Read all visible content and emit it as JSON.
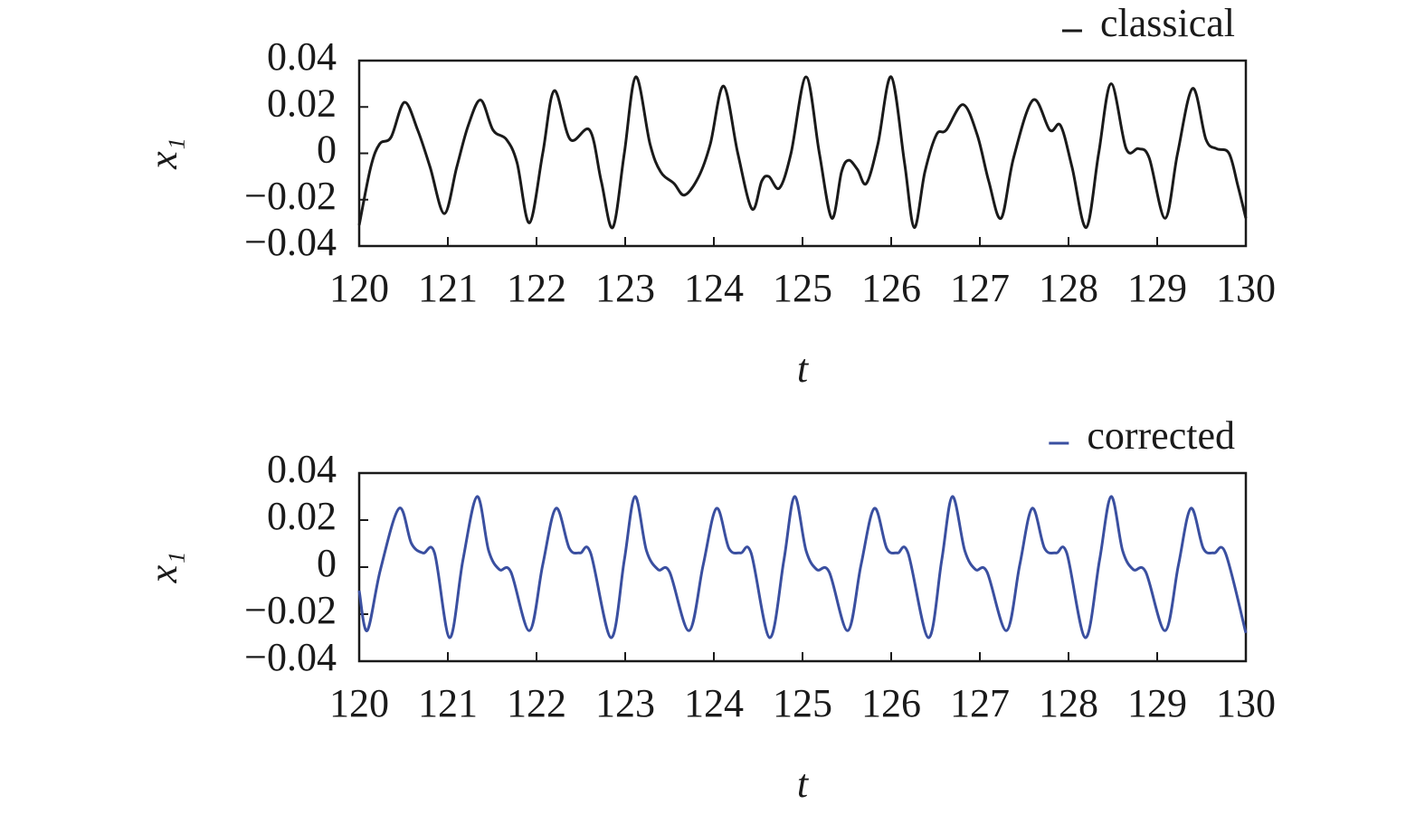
{
  "chart_data": [
    {
      "type": "line",
      "xlabel": "t",
      "ylabel": "x₁",
      "legend": "top right",
      "xlim": [
        120,
        130
      ],
      "ylim": [
        -0.04,
        0.04
      ],
      "xticks": [
        120,
        121,
        122,
        123,
        124,
        125,
        126,
        127,
        128,
        129,
        130
      ],
      "yticks": [
        {
          "value": -0.04,
          "label": "−0.04"
        },
        {
          "value": -0.02,
          "label": "−0.02"
        },
        0,
        0.02,
        0.04
      ],
      "x": [
        120,
        120.13,
        120.23,
        120.36,
        120.51,
        120.66,
        120.8,
        120.96,
        121.1,
        121.23,
        121.37,
        121.51,
        121.66,
        121.78,
        121.92,
        122.07,
        122.2,
        122.38,
        122.6,
        122.73,
        122.86,
        122.99,
        123.12,
        123.28,
        123.4,
        123.55,
        123.67,
        123.83,
        123.96,
        124.11,
        124.27,
        124.43,
        124.54,
        124.62,
        124.74,
        124.87,
        125.04,
        125.19,
        125.33,
        125.44,
        125.52,
        125.62,
        125.72,
        125.85,
        126,
        126.15,
        126.26,
        126.38,
        126.51,
        126.62,
        126.81,
        126.97,
        127.1,
        127.24,
        127.38,
        127.6,
        127.79,
        127.91,
        128.04,
        128.2,
        128.34,
        128.48,
        128.65,
        128.79,
        128.91,
        129.09,
        129.23,
        129.4,
        129.55,
        129.67,
        129.81,
        129.91,
        130
      ],
      "series": [
        {
          "name": "classical",
          "color": "#1a1a1a",
          "values": [
            -0.031,
            -0.006,
            0.004,
            0.007,
            0.022,
            0.01,
            -0.006,
            -0.026,
            -0.006,
            0.012,
            0.023,
            0.01,
            0.006,
            -0.004,
            -0.03,
            0,
            0.027,
            0.006,
            0.01,
            -0.012,
            -0.032,
            0,
            0.033,
            0.004,
            -0.008,
            -0.013,
            -0.018,
            -0.01,
            0.004,
            0.029,
            0,
            -0.024,
            -0.012,
            -0.01,
            -0.015,
            0,
            0.033,
            0,
            -0.028,
            -0.008,
            -0.003,
            -0.007,
            -0.013,
            0.004,
            0.033,
            -0.004,
            -0.032,
            -0.008,
            0.008,
            0.01,
            0.021,
            0.008,
            -0.012,
            -0.028,
            -0.002,
            0.023,
            0.01,
            0.012,
            -0.006,
            -0.032,
            0,
            0.03,
            0.002,
            0.002,
            -0.002,
            -0.028,
            0,
            0.028,
            0.006,
            0.002,
            0,
            -0.014,
            -0.028
          ]
        }
      ]
    },
    {
      "type": "line",
      "xlabel": "t",
      "ylabel": "x₁",
      "legend": "top right",
      "xlim": [
        120,
        130
      ],
      "ylim": [
        -0.04,
        0.04
      ],
      "xticks": [
        120,
        121,
        122,
        123,
        124,
        125,
        126,
        127,
        128,
        129,
        130
      ],
      "yticks": [
        {
          "value": -0.04,
          "label": "−0.04"
        },
        {
          "value": -0.02,
          "label": "−0.02"
        },
        0,
        0.02,
        0.04
      ],
      "x": [
        120,
        120.09,
        120.24,
        120.45,
        120.59,
        120.72,
        120.85,
        121.02,
        121.17,
        121.33,
        121.46,
        121.58,
        121.71,
        121.92,
        122.07,
        122.22,
        122.37,
        122.49,
        122.61,
        122.84,
        122.99,
        123.11,
        123.24,
        123.37,
        123.5,
        123.72,
        123.88,
        124.03,
        124.17,
        124.3,
        124.42,
        124.63,
        124.79,
        124.91,
        125.04,
        125.16,
        125.3,
        125.51,
        125.66,
        125.81,
        125.95,
        126.07,
        126.19,
        126.42,
        126.57,
        126.69,
        126.83,
        126.95,
        127.08,
        127.3,
        127.45,
        127.59,
        127.73,
        127.86,
        127.98,
        128.19,
        128.35,
        128.48,
        128.61,
        128.73,
        128.87,
        129.09,
        129.24,
        129.38,
        129.52,
        129.64,
        129.77,
        130
      ],
      "series": [
        {
          "name": "corrected",
          "color": "#3a4fa0",
          "values": [
            -0.01,
            -0.027,
            -0.001,
            0.025,
            0.01,
            0.006,
            0.006,
            -0.03,
            0.003,
            0.03,
            0.007,
            -0.001,
            -0.002,
            -0.027,
            0.001,
            0.025,
            0.008,
            0.006,
            0.006,
            -0.03,
            0.003,
            0.03,
            0.007,
            -0.001,
            -0.002,
            -0.027,
            0.001,
            0.025,
            0.008,
            0.006,
            0.006,
            -0.03,
            0.003,
            0.03,
            0.007,
            -0.001,
            -0.002,
            -0.027,
            0.001,
            0.025,
            0.008,
            0.006,
            0.006,
            -0.03,
            0.003,
            0.03,
            0.007,
            -0.001,
            -0.002,
            -0.027,
            0.001,
            0.025,
            0.008,
            0.006,
            0.006,
            -0.03,
            0.003,
            0.03,
            0.007,
            -0.001,
            -0.002,
            -0.027,
            0.001,
            0.025,
            0.008,
            0.006,
            0.006,
            -0.028
          ]
        }
      ]
    }
  ]
}
